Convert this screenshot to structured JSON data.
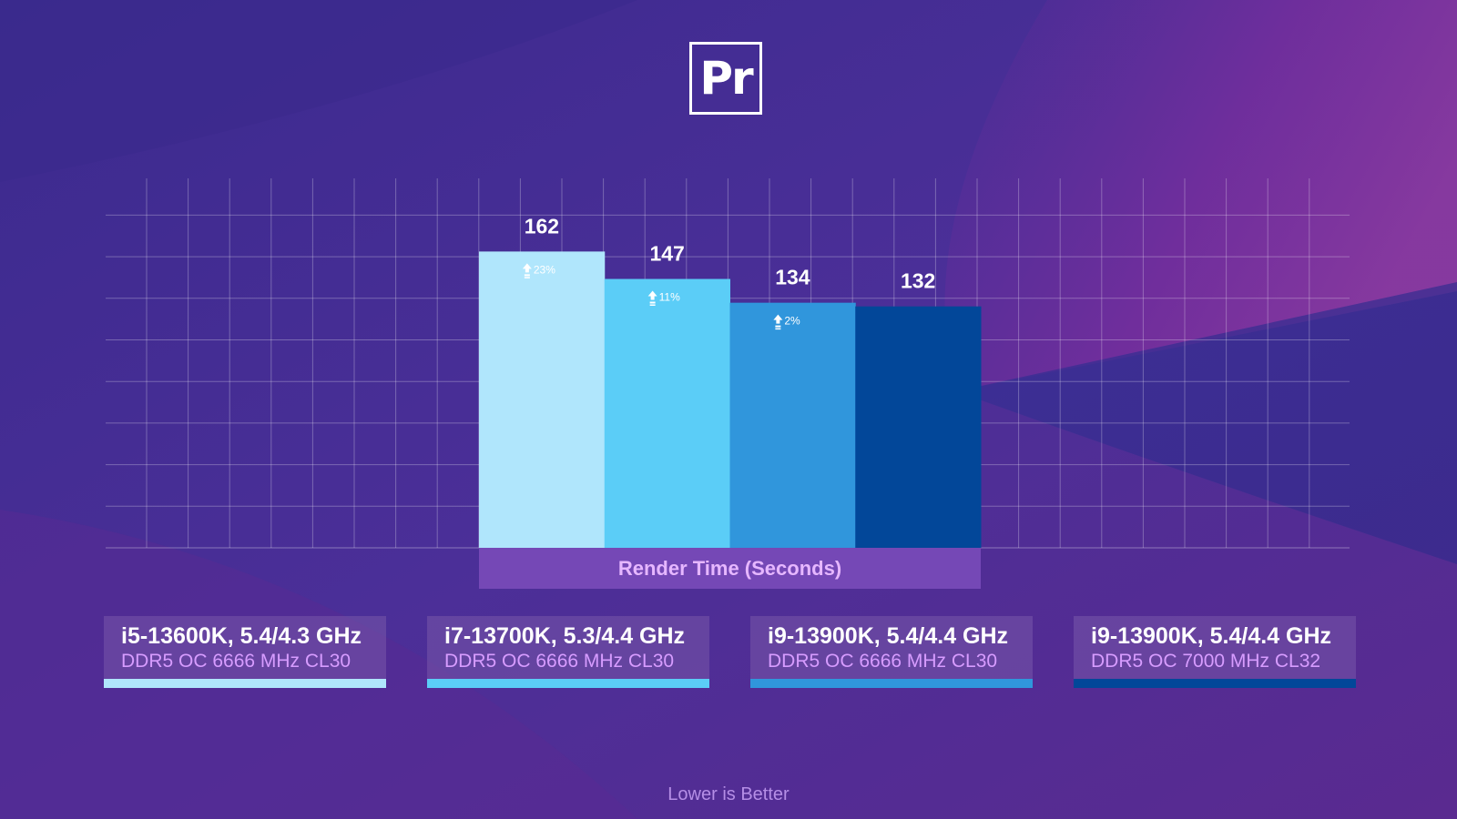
{
  "logo": {
    "text": "Pr"
  },
  "colors": {
    "bar1": "#b0e6fc",
    "bar2": "#5bcdf7",
    "bar3": "#3096dc",
    "bar4": "#024799",
    "axis_label_bg": "#7548b6"
  },
  "chart_data": {
    "type": "bar",
    "categories": [
      "i5-13600K, 5.4/4.3 GHz",
      "i7-13700K, 5.3/4.4 GHz",
      "i9-13900K, 5.4/4.4 GHz",
      "i9-13900K, 5.4/4.4 GHz"
    ],
    "values": [
      162,
      147,
      134,
      132
    ],
    "value_labels": [
      "162",
      "147",
      "134",
      "132"
    ],
    "diff_labels": [
      "23%",
      "11%",
      "2%",
      ""
    ],
    "xlabel": "Render Time (Seconds)",
    "ylim": [
      0,
      202
    ],
    "grid": true
  },
  "legend": [
    {
      "title": "i5-13600K, 5.4/4.3 GHz",
      "subtitle": "DDR5 OC 6666 MHz CL30",
      "color": "#b0e6fc"
    },
    {
      "title": "i7-13700K, 5.3/4.4 GHz",
      "subtitle": "DDR5 OC 6666 MHz CL30",
      "color": "#5bcdf7"
    },
    {
      "title": "i9-13900K, 5.4/4.4 GHz",
      "subtitle": "DDR5 OC 6666 MHz CL30",
      "color": "#3096dc"
    },
    {
      "title": "i9-13900K, 5.4/4.4 GHz",
      "subtitle": "DDR5 OC 7000 MHz CL32",
      "color": "#024799"
    }
  ],
  "footer": {
    "note": "Lower is Better"
  }
}
